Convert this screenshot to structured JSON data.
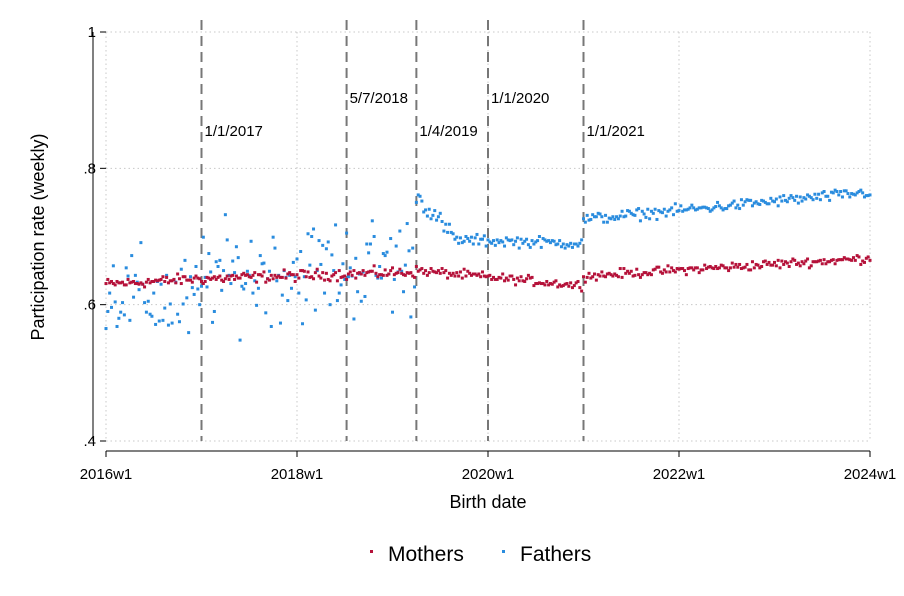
{
  "chart_data": {
    "type": "scatter",
    "xlabel": "Birth date",
    "ylabel": "Participation rate (weekly)",
    "x_unit": "birth week",
    "xlim": [
      "2016w1",
      "2024w1"
    ],
    "ylim": [
      0.4,
      1.0
    ],
    "x_ticks": [
      "2016w1",
      "2018w1",
      "2020w1",
      "2022w1",
      "2024w1"
    ],
    "y_ticks": [
      {
        "value": 0.4,
        "label": ".4"
      },
      {
        "value": 0.6,
        "label": ".6"
      },
      {
        "value": 0.8,
        "label": ".8"
      },
      {
        "value": 1.0,
        "label": "1"
      }
    ],
    "grid": "dotted, both axes",
    "legend_position": "bottom",
    "vertical_lines": [
      {
        "date": "2017w1",
        "label": "1/1/2017"
      },
      {
        "date": "2018w28",
        "label": "5/7/2018"
      },
      {
        "date": "2019w14",
        "label": "1/4/2019"
      },
      {
        "date": "2020w1",
        "label": "1/1/2020"
      },
      {
        "date": "2021w1",
        "label": "1/1/2021"
      }
    ],
    "series": [
      {
        "name": "Mothers",
        "color": "#b5123a",
        "segments": [
          {
            "x_start": "2016w1",
            "x_end": "2016w52",
            "y": [
              0.63,
              0.638
            ],
            "spread": 0.012
          },
          {
            "x_start": "2017w1",
            "x_end": "2019w13",
            "y": [
              0.638,
              0.648
            ],
            "spread": 0.012
          },
          {
            "x_start": "2019w14",
            "x_end": "2020w52",
            "y": [
              0.65,
              0.628
            ],
            "spread": 0.01
          },
          {
            "x_start": "2021w1",
            "x_end": "2024w1",
            "y": [
              0.642,
              0.668
            ],
            "spread": 0.01
          }
        ],
        "values": []
      },
      {
        "name": "Fathers",
        "color": "#2a8cde",
        "segments": [
          {
            "x_start": "2016w1",
            "x_end": "2016w52",
            "y": [
              0.62,
              0.6
            ],
            "spread": 0.1
          },
          {
            "x_start": "2017w1",
            "x_end": "2019w13",
            "y": [
              0.64,
              0.66
            ],
            "spread": 0.11
          },
          {
            "x_start": "2019w14",
            "x_end": "2019w34",
            "y": [
              0.76,
              0.7
            ],
            "spread": 0.02
          },
          {
            "x_start": "2019w35",
            "x_end": "2020w52",
            "y": [
              0.695,
              0.69
            ],
            "spread": 0.012
          },
          {
            "x_start": "2021w1",
            "x_end": "2024w1",
            "y": [
              0.725,
              0.765
            ],
            "spread": 0.012
          }
        ],
        "values": []
      }
    ]
  }
}
